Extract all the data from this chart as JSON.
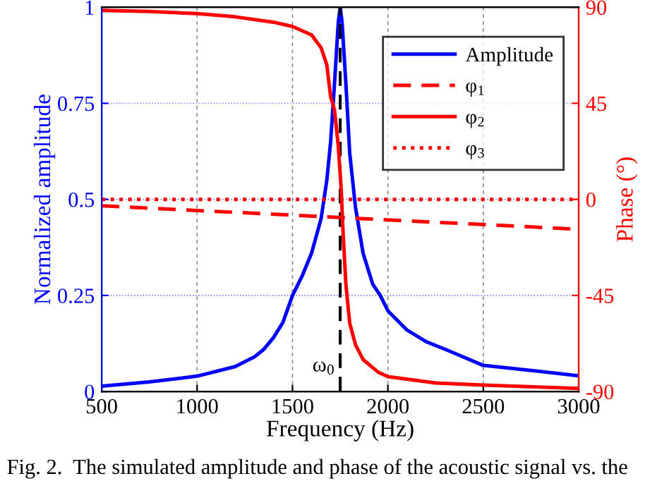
{
  "chart_data": {
    "type": "line",
    "xlabel": "Frequency (Hz)",
    "ylabel": "Normalized amplitude",
    "y2label": "Phase (°)",
    "xlim": [
      500,
      3000
    ],
    "xticks": [
      500,
      1000,
      1500,
      2000,
      2500,
      3000
    ],
    "ylim": [
      0,
      1
    ],
    "yticks": [
      0,
      0.25,
      0.5,
      0.75,
      1
    ],
    "y2lim": [
      -90,
      90
    ],
    "y2ticks": [
      -90,
      -45,
      0,
      45,
      90
    ],
    "grid": true,
    "legend": "top right",
    "series": [
      {
        "name": "Amplitude",
        "color": "#0000ff",
        "line_style": "solid",
        "x": [
          500,
          750,
          1000,
          1200,
          1300,
          1350,
          1400,
          1450,
          1500,
          1550,
          1600,
          1650,
          1680,
          1700,
          1720,
          1740,
          1750,
          1760,
          1780,
          1800,
          1830,
          1870,
          1920,
          1960,
          2000,
          2100,
          2200,
          2300,
          2500,
          2750,
          3000
        ],
        "values": [
          0.014,
          0.025,
          0.04,
          0.065,
          0.09,
          0.11,
          0.14,
          0.18,
          0.25,
          0.3,
          0.36,
          0.45,
          0.55,
          0.65,
          0.8,
          0.96,
          1.0,
          0.96,
          0.8,
          0.62,
          0.48,
          0.36,
          0.28,
          0.25,
          0.21,
          0.16,
          0.13,
          0.11,
          0.068,
          0.055,
          0.041
        ]
      },
      {
        "name": "φ$_{1}$",
        "color": "#ff0000",
        "line_style": "dashed",
        "axis": "y2",
        "x": [
          500,
          3000
        ],
        "values": [
          -3,
          -14
        ]
      },
      {
        "name": "φ$_{2}$",
        "color": "#ff0000",
        "line_style": "solid",
        "axis": "y2",
        "x": [
          500,
          750,
          1000,
          1200,
          1400,
          1500,
          1600,
          1650,
          1680,
          1700,
          1720,
          1740,
          1755,
          1765,
          1780,
          1800,
          1830,
          1870,
          1950,
          2000,
          2250,
          2500,
          3000
        ],
        "values": [
          88.5,
          88,
          87,
          85.5,
          83,
          81,
          77,
          71,
          63,
          48,
          42,
          25,
          5,
          -15,
          -40,
          -58,
          -68,
          -75,
          -81,
          -83,
          -86,
          -87,
          -88.5
        ]
      },
      {
        "name": "φ$_{3}$",
        "color": "#ff0000",
        "line_style": "dotted",
        "axis": "y2",
        "x": [
          500,
          3000
        ],
        "values": [
          0,
          0
        ]
      }
    ],
    "ref_lines": [
      {
        "axis": "x",
        "value": 1750,
        "label": "ω$_{0}$",
        "color": "#000000",
        "line_style": "dashed"
      }
    ],
    "annotations": [
      "Fig. 2.  The simulated amplitude and phase of the acoustic signal vs. the"
    ]
  }
}
